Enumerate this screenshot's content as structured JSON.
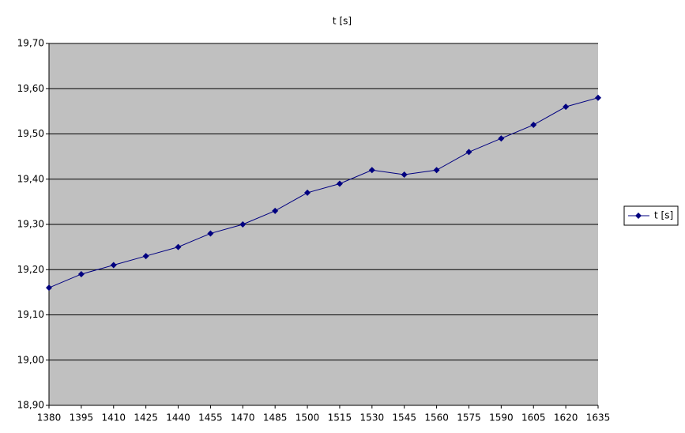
{
  "chart_data": {
    "type": "line",
    "title": "t [s]",
    "x": [
      1380,
      1395,
      1410,
      1425,
      1440,
      1455,
      1470,
      1485,
      1500,
      1515,
      1530,
      1545,
      1560,
      1575,
      1590,
      1605,
      1620,
      1635
    ],
    "series": [
      {
        "name": "t [s]",
        "color": "#000080",
        "values": [
          19.16,
          19.19,
          19.21,
          19.23,
          19.25,
          19.28,
          19.3,
          19.33,
          19.37,
          19.39,
          19.42,
          19.41,
          19.42,
          19.46,
          19.49,
          19.52,
          19.56,
          19.58
        ]
      }
    ],
    "xlim": [
      1380,
      1635
    ],
    "xticks": [
      1380,
      1395,
      1410,
      1425,
      1440,
      1455,
      1470,
      1485,
      1500,
      1515,
      1530,
      1545,
      1560,
      1575,
      1590,
      1605,
      1620,
      1635
    ],
    "ylim": [
      18.9,
      19.7
    ],
    "yticks": [
      {
        "value": 18.9,
        "label": "18,90"
      },
      {
        "value": 19.0,
        "label": "19,00"
      },
      {
        "value": 19.1,
        "label": "19,10"
      },
      {
        "value": 19.2,
        "label": "19,20"
      },
      {
        "value": 19.3,
        "label": "19,30"
      },
      {
        "value": 19.4,
        "label": "19,40"
      },
      {
        "value": 19.5,
        "label": "19,50"
      },
      {
        "value": 19.6,
        "label": "19,60"
      },
      {
        "value": 19.7,
        "label": "19,70"
      }
    ],
    "grid": true,
    "legend": "right"
  }
}
